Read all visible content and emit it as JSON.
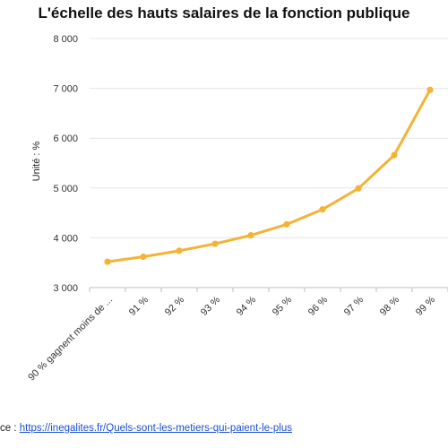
{
  "chart_data": {
    "type": "line",
    "title": "L'échelle des hauts salaires de la fonction publique",
    "ylabel": "Unité : %",
    "xlabel": "",
    "categories": [
      "90 % gagnent moins de ...",
      "91 %",
      "92 %",
      "93 %",
      "94 %",
      "95 %",
      "96 %",
      "97 %",
      "98 %",
      "99 %"
    ],
    "series": [
      {
        "values": [
          3520,
          3620,
          3740,
          3880,
          4050,
          4270,
          4570,
          4990,
          5660,
          6970
        ]
      }
    ],
    "ylim": [
      3000,
      8000
    ],
    "yticks": [
      3000,
      4000,
      5000,
      6000,
      7000,
      8000
    ],
    "ytick_labels": [
      "3 000",
      "4 000",
      "5 000",
      "6 000",
      "7 000",
      "8 000"
    ],
    "grid": true,
    "legend": "none",
    "line_color": "#f5b335"
  },
  "source": {
    "prefix": "ce : ",
    "link_text": "https://inegalites.fr/Quels-sont-les-metiers-qui-paient-le-plus"
  }
}
